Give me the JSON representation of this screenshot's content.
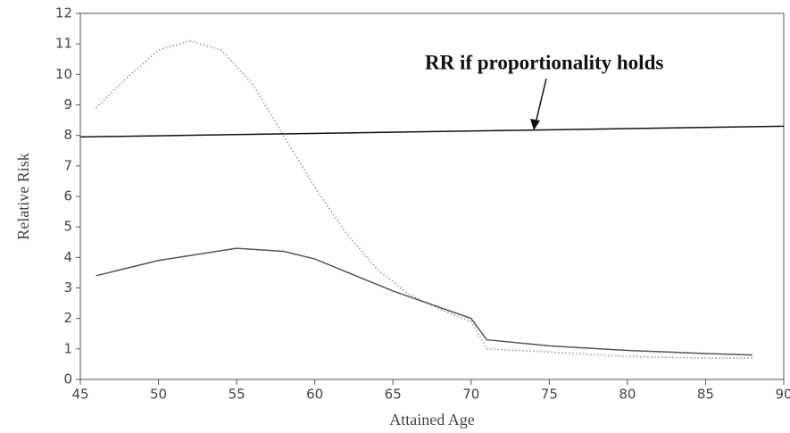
{
  "chart_data": {
    "type": "line",
    "xlabel": "Attained Age",
    "ylabel": "Relative Risk",
    "annotation": "RR if proportionality holds",
    "xlim": [
      45,
      90
    ],
    "xticks": [
      45,
      50,
      55,
      60,
      65,
      70,
      75,
      80,
      85,
      90
    ],
    "ylim": [
      0,
      12
    ],
    "yticks": [
      0,
      1,
      2,
      3,
      4,
      5,
      6,
      7,
      8,
      9,
      10,
      11,
      12
    ],
    "series": [
      {
        "color": "#999999",
        "style": "dotted",
        "x": [
          46,
          48,
          50,
          52,
          54,
          56,
          58,
          60,
          62,
          64,
          66,
          68,
          70,
          71,
          75,
          80,
          85,
          88
        ],
        "values": [
          8.9,
          9.9,
          10.8,
          11.1,
          10.8,
          9.7,
          8.0,
          6.3,
          4.8,
          3.6,
          2.8,
          2.3,
          1.9,
          1.0,
          0.9,
          0.75,
          0.7,
          0.7
        ]
      },
      {
        "color": "#555555",
        "style": "solid",
        "x": [
          46,
          50,
          55,
          58,
          60,
          65,
          70,
          71,
          75,
          80,
          85,
          88
        ],
        "values": [
          3.4,
          3.9,
          4.3,
          4.2,
          3.95,
          2.9,
          2.0,
          1.3,
          1.1,
          0.95,
          0.85,
          0.8
        ]
      },
      {
        "color": "#111111",
        "style": "solid",
        "x": [
          45,
          90
        ],
        "values": [
          7.95,
          8.3
        ]
      }
    ]
  }
}
